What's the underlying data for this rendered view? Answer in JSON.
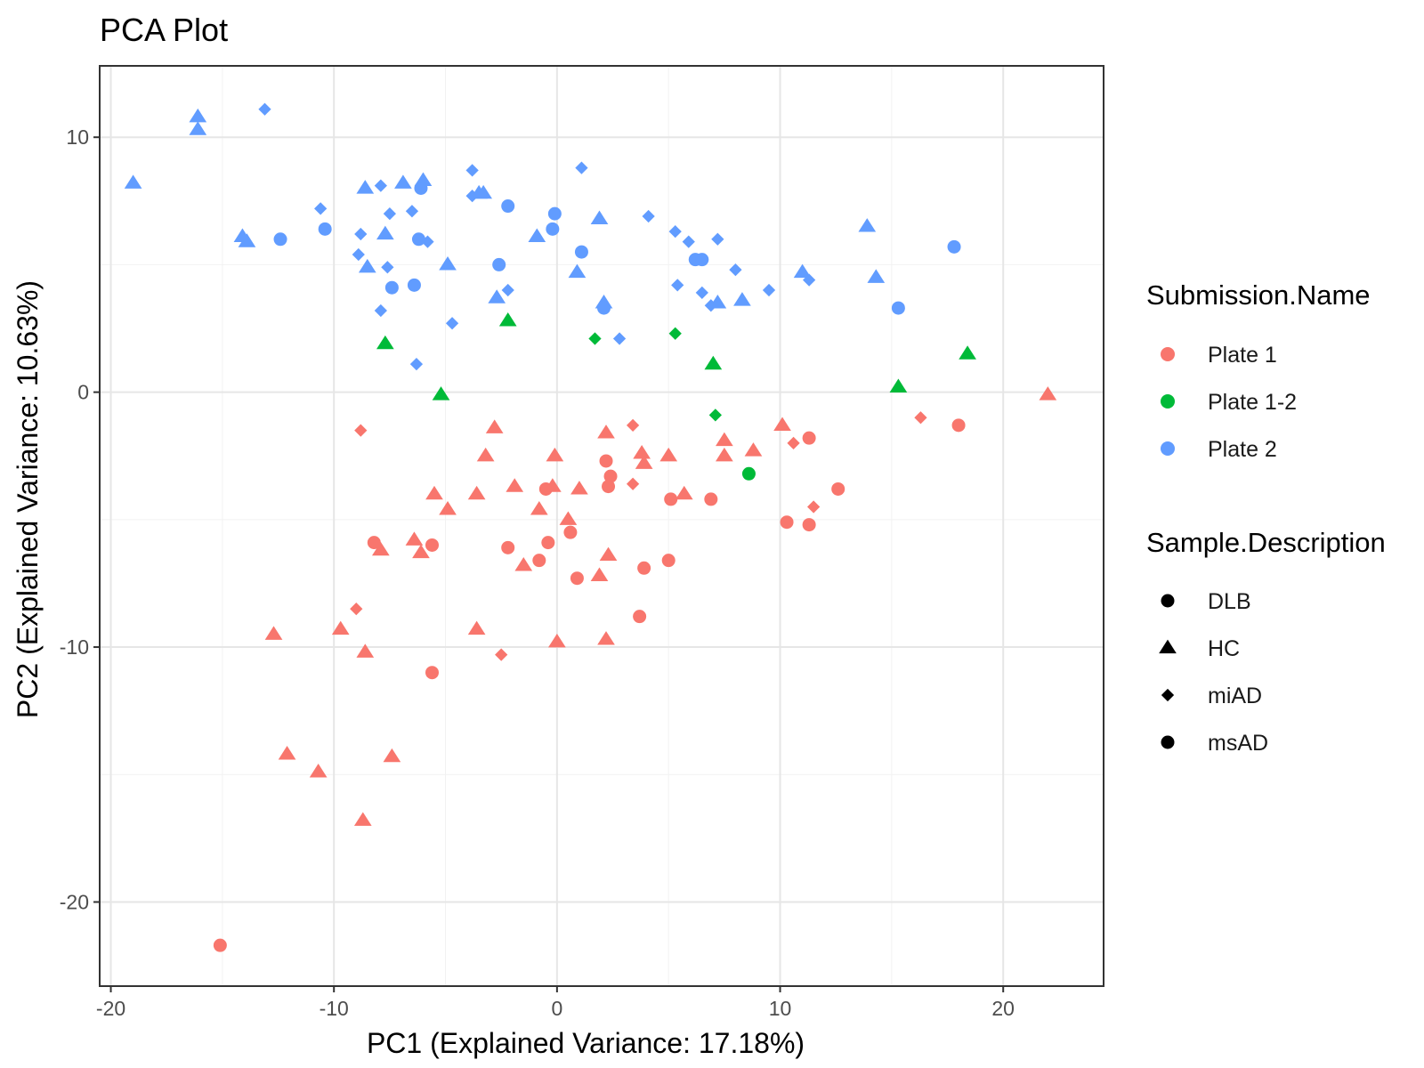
{
  "chart_data": {
    "type": "scatter",
    "title": "PCA Plot",
    "xlabel": "PC1 (Explained Variance: 17.18%)",
    "ylabel": "PC2 (Explained Variance: 10.63%)",
    "xlim": [
      -20.5,
      24.5
    ],
    "ylim": [
      -23.3,
      12.8
    ],
    "x_ticks": [
      -20,
      -10,
      0,
      10,
      20
    ],
    "y_ticks": [
      -20,
      -10,
      0,
      10
    ],
    "grid": true,
    "legend_position": "right",
    "color_legend": {
      "title": "Submission.Name",
      "entries": [
        {
          "name": "Plate 1",
          "color": "#F8766D"
        },
        {
          "name": "Plate 1-2",
          "color": "#00BA38"
        },
        {
          "name": "Plate 2",
          "color": "#619CFF"
        }
      ]
    },
    "shape_legend": {
      "title": "Sample.Description",
      "entries": [
        {
          "name": "DLB",
          "shape": "circle"
        },
        {
          "name": "HC",
          "shape": "triangle"
        },
        {
          "name": "miAD",
          "shape": "diamond"
        },
        {
          "name": "msAD",
          "shape": "circle"
        }
      ]
    },
    "points": [
      {
        "x": -19.0,
        "y": 8.2,
        "plate": "Plate 2",
        "group": "HC"
      },
      {
        "x": -16.1,
        "y": 10.8,
        "plate": "Plate 2",
        "group": "HC"
      },
      {
        "x": -16.1,
        "y": 10.3,
        "plate": "Plate 2",
        "group": "HC"
      },
      {
        "x": -13.1,
        "y": 11.1,
        "plate": "Plate 2",
        "group": "miAD"
      },
      {
        "x": -14.1,
        "y": 6.1,
        "plate": "Plate 2",
        "group": "HC"
      },
      {
        "x": -13.9,
        "y": 5.9,
        "plate": "Plate 2",
        "group": "HC"
      },
      {
        "x": -12.4,
        "y": 6.0,
        "plate": "Plate 2",
        "group": "DLB"
      },
      {
        "x": -10.6,
        "y": 7.2,
        "plate": "Plate 2",
        "group": "miAD"
      },
      {
        "x": -10.4,
        "y": 6.4,
        "plate": "Plate 2",
        "group": "DLB"
      },
      {
        "x": -8.8,
        "y": 6.2,
        "plate": "Plate 2",
        "group": "miAD"
      },
      {
        "x": -8.9,
        "y": 5.4,
        "plate": "Plate 2",
        "group": "miAD"
      },
      {
        "x": -8.6,
        "y": 8.0,
        "plate": "Plate 2",
        "group": "HC"
      },
      {
        "x": -7.9,
        "y": 8.1,
        "plate": "Plate 2",
        "group": "miAD"
      },
      {
        "x": -7.7,
        "y": 6.2,
        "plate": "Plate 2",
        "group": "HC"
      },
      {
        "x": -7.5,
        "y": 7.0,
        "plate": "Plate 2",
        "group": "miAD"
      },
      {
        "x": -8.5,
        "y": 4.9,
        "plate": "Plate 2",
        "group": "HC"
      },
      {
        "x": -7.6,
        "y": 4.9,
        "plate": "Plate 2",
        "group": "miAD"
      },
      {
        "x": -7.4,
        "y": 4.1,
        "plate": "Plate 2",
        "group": "DLB"
      },
      {
        "x": -7.9,
        "y": 3.2,
        "plate": "Plate 2",
        "group": "miAD"
      },
      {
        "x": -6.9,
        "y": 8.2,
        "plate": "Plate 2",
        "group": "HC"
      },
      {
        "x": -6.5,
        "y": 7.1,
        "plate": "Plate 2",
        "group": "miAD"
      },
      {
        "x": -6.0,
        "y": 8.3,
        "plate": "Plate 2",
        "group": "HC"
      },
      {
        "x": -6.1,
        "y": 8.0,
        "plate": "Plate 2",
        "group": "DLB"
      },
      {
        "x": -6.2,
        "y": 6.0,
        "plate": "Plate 2",
        "group": "DLB"
      },
      {
        "x": -5.8,
        "y": 5.9,
        "plate": "Plate 2",
        "group": "miAD"
      },
      {
        "x": -6.4,
        "y": 4.2,
        "plate": "Plate 2",
        "group": "DLB"
      },
      {
        "x": -4.9,
        "y": 5.0,
        "plate": "Plate 2",
        "group": "HC"
      },
      {
        "x": -4.7,
        "y": 2.7,
        "plate": "Plate 2",
        "group": "miAD"
      },
      {
        "x": -6.3,
        "y": 1.1,
        "plate": "Plate 2",
        "group": "miAD"
      },
      {
        "x": -3.8,
        "y": 8.7,
        "plate": "Plate 2",
        "group": "miAD"
      },
      {
        "x": -3.8,
        "y": 7.7,
        "plate": "Plate 2",
        "group": "miAD"
      },
      {
        "x": -3.5,
        "y": 7.8,
        "plate": "Plate 2",
        "group": "HC"
      },
      {
        "x": -3.3,
        "y": 7.8,
        "plate": "Plate 2",
        "group": "HC"
      },
      {
        "x": -2.2,
        "y": 7.3,
        "plate": "Plate 2",
        "group": "DLB"
      },
      {
        "x": -2.6,
        "y": 5.0,
        "plate": "Plate 2",
        "group": "DLB"
      },
      {
        "x": -2.2,
        "y": 4.0,
        "plate": "Plate 2",
        "group": "miAD"
      },
      {
        "x": -2.7,
        "y": 3.7,
        "plate": "Plate 2",
        "group": "HC"
      },
      {
        "x": -0.9,
        "y": 6.1,
        "plate": "Plate 2",
        "group": "HC"
      },
      {
        "x": -0.2,
        "y": 6.4,
        "plate": "Plate 2",
        "group": "DLB"
      },
      {
        "x": -0.1,
        "y": 7.0,
        "plate": "Plate 2",
        "group": "DLB"
      },
      {
        "x": 1.1,
        "y": 8.8,
        "plate": "Plate 2",
        "group": "miAD"
      },
      {
        "x": 1.1,
        "y": 5.5,
        "plate": "Plate 2",
        "group": "DLB"
      },
      {
        "x": 0.9,
        "y": 4.7,
        "plate": "Plate 2",
        "group": "HC"
      },
      {
        "x": 1.9,
        "y": 6.8,
        "plate": "Plate 2",
        "group": "HC"
      },
      {
        "x": 2.1,
        "y": 3.5,
        "plate": "Plate 2",
        "group": "HC"
      },
      {
        "x": 2.1,
        "y": 3.3,
        "plate": "Plate 2",
        "group": "DLB"
      },
      {
        "x": 2.8,
        "y": 2.1,
        "plate": "Plate 2",
        "group": "miAD"
      },
      {
        "x": 4.1,
        "y": 6.9,
        "plate": "Plate 2",
        "group": "miAD"
      },
      {
        "x": 5.3,
        "y": 6.3,
        "plate": "Plate 2",
        "group": "miAD"
      },
      {
        "x": 5.9,
        "y": 5.9,
        "plate": "Plate 2",
        "group": "miAD"
      },
      {
        "x": 6.2,
        "y": 5.2,
        "plate": "Plate 2",
        "group": "DLB"
      },
      {
        "x": 6.5,
        "y": 5.2,
        "plate": "Plate 2",
        "group": "DLB"
      },
      {
        "x": 5.4,
        "y": 4.2,
        "plate": "Plate 2",
        "group": "miAD"
      },
      {
        "x": 6.5,
        "y": 3.9,
        "plate": "Plate 2",
        "group": "miAD"
      },
      {
        "x": 6.9,
        "y": 3.4,
        "plate": "Plate 2",
        "group": "miAD"
      },
      {
        "x": 7.2,
        "y": 3.5,
        "plate": "Plate 2",
        "group": "HC"
      },
      {
        "x": 7.2,
        "y": 6.0,
        "plate": "Plate 2",
        "group": "miAD"
      },
      {
        "x": 8.0,
        "y": 4.8,
        "plate": "Plate 2",
        "group": "miAD"
      },
      {
        "x": 8.3,
        "y": 3.6,
        "plate": "Plate 2",
        "group": "HC"
      },
      {
        "x": 9.5,
        "y": 4.0,
        "plate": "Plate 2",
        "group": "miAD"
      },
      {
        "x": 11.0,
        "y": 4.7,
        "plate": "Plate 2",
        "group": "HC"
      },
      {
        "x": 11.3,
        "y": 4.4,
        "plate": "Plate 2",
        "group": "miAD"
      },
      {
        "x": 13.9,
        "y": 6.5,
        "plate": "Plate 2",
        "group": "HC"
      },
      {
        "x": 14.3,
        "y": 4.5,
        "plate": "Plate 2",
        "group": "HC"
      },
      {
        "x": 15.3,
        "y": 3.3,
        "plate": "Plate 2",
        "group": "DLB"
      },
      {
        "x": 17.8,
        "y": 5.7,
        "plate": "Plate 2",
        "group": "DLB"
      },
      {
        "x": -7.7,
        "y": 1.9,
        "plate": "Plate 1-2",
        "group": "HC"
      },
      {
        "x": -5.2,
        "y": -0.1,
        "plate": "Plate 1-2",
        "group": "HC"
      },
      {
        "x": -2.2,
        "y": 2.8,
        "plate": "Plate 1-2",
        "group": "HC"
      },
      {
        "x": 1.7,
        "y": 2.1,
        "plate": "Plate 1-2",
        "group": "miAD"
      },
      {
        "x": 5.3,
        "y": 2.3,
        "plate": "Plate 1-2",
        "group": "miAD"
      },
      {
        "x": 7.0,
        "y": 1.1,
        "plate": "Plate 1-2",
        "group": "HC"
      },
      {
        "x": 7.1,
        "y": -0.9,
        "plate": "Plate 1-2",
        "group": "miAD"
      },
      {
        "x": 8.6,
        "y": -3.2,
        "plate": "Plate 1-2",
        "group": "DLB"
      },
      {
        "x": 15.3,
        "y": 0.2,
        "plate": "Plate 1-2",
        "group": "HC"
      },
      {
        "x": 18.4,
        "y": 1.5,
        "plate": "Plate 1-2",
        "group": "HC"
      },
      {
        "x": 22.0,
        "y": -0.1,
        "plate": "Plate 1",
        "group": "HC"
      },
      {
        "x": 16.3,
        "y": -1.0,
        "plate": "Plate 1",
        "group": "miAD"
      },
      {
        "x": 18.0,
        "y": -1.3,
        "plate": "Plate 1",
        "group": "DLB"
      },
      {
        "x": -8.8,
        "y": -1.5,
        "plate": "Plate 1",
        "group": "miAD"
      },
      {
        "x": -2.8,
        "y": -1.4,
        "plate": "Plate 1",
        "group": "HC"
      },
      {
        "x": -3.2,
        "y": -2.5,
        "plate": "Plate 1",
        "group": "HC"
      },
      {
        "x": -1.9,
        "y": -3.7,
        "plate": "Plate 1",
        "group": "HC"
      },
      {
        "x": -0.1,
        "y": -2.5,
        "plate": "Plate 1",
        "group": "HC"
      },
      {
        "x": -0.5,
        "y": -3.8,
        "plate": "Plate 1",
        "group": "DLB"
      },
      {
        "x": -0.2,
        "y": -3.7,
        "plate": "Plate 1",
        "group": "HC"
      },
      {
        "x": -0.8,
        "y": -4.6,
        "plate": "Plate 1",
        "group": "HC"
      },
      {
        "x": 0.5,
        "y": -5.0,
        "plate": "Plate 1",
        "group": "HC"
      },
      {
        "x": 1.0,
        "y": -3.8,
        "plate": "Plate 1",
        "group": "HC"
      },
      {
        "x": -5.5,
        "y": -4.0,
        "plate": "Plate 1",
        "group": "HC"
      },
      {
        "x": -4.9,
        "y": -4.6,
        "plate": "Plate 1",
        "group": "HC"
      },
      {
        "x": -3.6,
        "y": -4.0,
        "plate": "Plate 1",
        "group": "HC"
      },
      {
        "x": 2.2,
        "y": -1.6,
        "plate": "Plate 1",
        "group": "HC"
      },
      {
        "x": 2.2,
        "y": -2.7,
        "plate": "Plate 1",
        "group": "DLB"
      },
      {
        "x": 2.4,
        "y": -3.3,
        "plate": "Plate 1",
        "group": "DLB"
      },
      {
        "x": 2.3,
        "y": -3.7,
        "plate": "Plate 1",
        "group": "DLB"
      },
      {
        "x": 3.4,
        "y": -1.3,
        "plate": "Plate 1",
        "group": "miAD"
      },
      {
        "x": 3.8,
        "y": -2.4,
        "plate": "Plate 1",
        "group": "HC"
      },
      {
        "x": 3.9,
        "y": -2.8,
        "plate": "Plate 1",
        "group": "HC"
      },
      {
        "x": 3.4,
        "y": -3.6,
        "plate": "Plate 1",
        "group": "miAD"
      },
      {
        "x": 5.0,
        "y": -2.5,
        "plate": "Plate 1",
        "group": "HC"
      },
      {
        "x": 5.1,
        "y": -4.2,
        "plate": "Plate 1",
        "group": "DLB"
      },
      {
        "x": 5.7,
        "y": -4.0,
        "plate": "Plate 1",
        "group": "HC"
      },
      {
        "x": 6.9,
        "y": -4.2,
        "plate": "Plate 1",
        "group": "DLB"
      },
      {
        "x": 7.5,
        "y": -1.9,
        "plate": "Plate 1",
        "group": "HC"
      },
      {
        "x": 7.5,
        "y": -2.5,
        "plate": "Plate 1",
        "group": "HC"
      },
      {
        "x": 8.8,
        "y": -2.3,
        "plate": "Plate 1",
        "group": "HC"
      },
      {
        "x": 10.1,
        "y": -1.3,
        "plate": "Plate 1",
        "group": "HC"
      },
      {
        "x": 10.6,
        "y": -2.0,
        "plate": "Plate 1",
        "group": "miAD"
      },
      {
        "x": 11.3,
        "y": -1.8,
        "plate": "Plate 1",
        "group": "DLB"
      },
      {
        "x": 10.3,
        "y": -5.1,
        "plate": "Plate 1",
        "group": "DLB"
      },
      {
        "x": 11.3,
        "y": -5.2,
        "plate": "Plate 1",
        "group": "DLB"
      },
      {
        "x": 11.5,
        "y": -4.5,
        "plate": "Plate 1",
        "group": "miAD"
      },
      {
        "x": 12.6,
        "y": -3.8,
        "plate": "Plate 1",
        "group": "DLB"
      },
      {
        "x": -8.2,
        "y": -5.9,
        "plate": "Plate 1",
        "group": "DLB"
      },
      {
        "x": -7.9,
        "y": -6.2,
        "plate": "Plate 1",
        "group": "HC"
      },
      {
        "x": -6.4,
        "y": -5.8,
        "plate": "Plate 1",
        "group": "HC"
      },
      {
        "x": -6.1,
        "y": -6.3,
        "plate": "Plate 1",
        "group": "HC"
      },
      {
        "x": -5.6,
        "y": -6.0,
        "plate": "Plate 1",
        "group": "DLB"
      },
      {
        "x": -2.2,
        "y": -6.1,
        "plate": "Plate 1",
        "group": "DLB"
      },
      {
        "x": -1.5,
        "y": -6.8,
        "plate": "Plate 1",
        "group": "HC"
      },
      {
        "x": -0.8,
        "y": -6.6,
        "plate": "Plate 1",
        "group": "DLB"
      },
      {
        "x": -0.4,
        "y": -5.9,
        "plate": "Plate 1",
        "group": "DLB"
      },
      {
        "x": 0.6,
        "y": -5.5,
        "plate": "Plate 1",
        "group": "DLB"
      },
      {
        "x": 0.9,
        "y": -7.3,
        "plate": "Plate 1",
        "group": "DLB"
      },
      {
        "x": 1.9,
        "y": -7.2,
        "plate": "Plate 1",
        "group": "HC"
      },
      {
        "x": 2.3,
        "y": -6.4,
        "plate": "Plate 1",
        "group": "HC"
      },
      {
        "x": 3.9,
        "y": -6.9,
        "plate": "Plate 1",
        "group": "DLB"
      },
      {
        "x": 5.0,
        "y": -6.6,
        "plate": "Plate 1",
        "group": "DLB"
      },
      {
        "x": 3.7,
        "y": -8.8,
        "plate": "Plate 1",
        "group": "DLB"
      },
      {
        "x": -9.0,
        "y": -8.5,
        "plate": "Plate 1",
        "group": "miAD"
      },
      {
        "x": -12.7,
        "y": -9.5,
        "plate": "Plate 1",
        "group": "HC"
      },
      {
        "x": -9.7,
        "y": -9.3,
        "plate": "Plate 1",
        "group": "HC"
      },
      {
        "x": -8.6,
        "y": -10.2,
        "plate": "Plate 1",
        "group": "HC"
      },
      {
        "x": -3.6,
        "y": -9.3,
        "plate": "Plate 1",
        "group": "HC"
      },
      {
        "x": -2.5,
        "y": -10.3,
        "plate": "Plate 1",
        "group": "miAD"
      },
      {
        "x": 0.0,
        "y": -9.8,
        "plate": "Plate 1",
        "group": "HC"
      },
      {
        "x": 2.2,
        "y": -9.7,
        "plate": "Plate 1",
        "group": "HC"
      },
      {
        "x": -5.6,
        "y": -11.0,
        "plate": "Plate 1",
        "group": "DLB"
      },
      {
        "x": -12.1,
        "y": -14.2,
        "plate": "Plate 1",
        "group": "HC"
      },
      {
        "x": -10.7,
        "y": -14.9,
        "plate": "Plate 1",
        "group": "HC"
      },
      {
        "x": -7.4,
        "y": -14.3,
        "plate": "Plate 1",
        "group": "HC"
      },
      {
        "x": -8.7,
        "y": -16.8,
        "plate": "Plate 1",
        "group": "HC"
      },
      {
        "x": -15.1,
        "y": -21.7,
        "plate": "Plate 1",
        "group": "DLB"
      }
    ]
  }
}
